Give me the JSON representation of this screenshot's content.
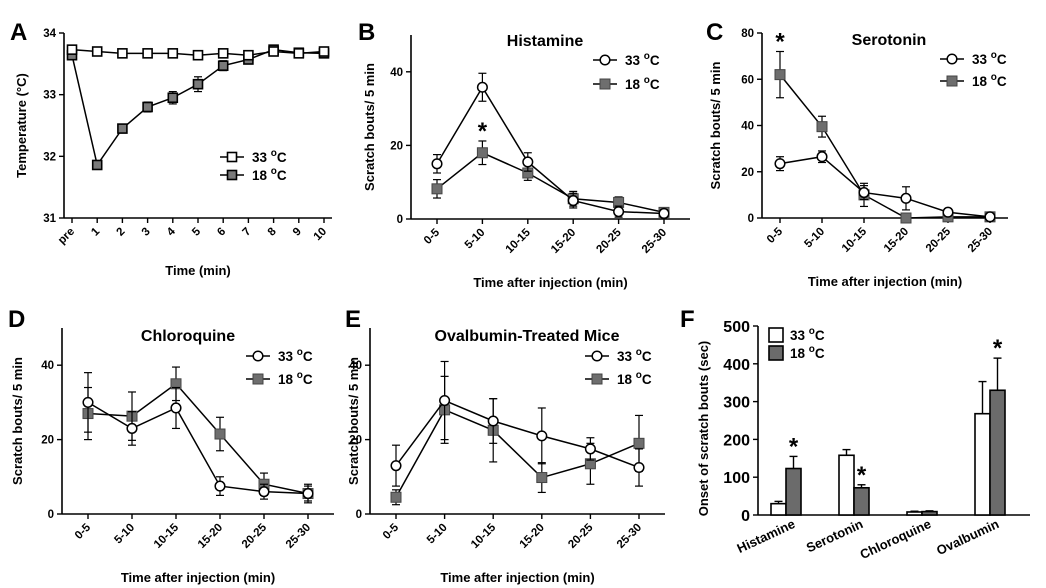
{
  "figure": {
    "panels": [
      "A",
      "B",
      "C",
      "D",
      "E",
      "F"
    ]
  },
  "chart_data": [
    {
      "panel": "A",
      "type": "line",
      "title": "",
      "xlabel": "Time (min)",
      "ylabel": "Temperature (°C)",
      "categories": [
        "pre",
        "1",
        "2",
        "3",
        "4",
        "5",
        "6",
        "7",
        "8",
        "9",
        "10"
      ],
      "ylim": [
        31,
        34
      ],
      "yticks": [
        31,
        32,
        33,
        34
      ],
      "legend": "center-right",
      "series": [
        {
          "name": "33 °C",
          "marker": "open",
          "values": [
            33.73,
            33.7,
            33.67,
            33.67,
            33.67,
            33.64,
            33.67,
            33.64,
            33.7,
            33.67,
            33.7
          ],
          "err": [
            0.03,
            0.02,
            0.02,
            0.02,
            0.02,
            0.03,
            0.02,
            0.03,
            0.03,
            0.03,
            0.03
          ]
        },
        {
          "name": "18 °C",
          "marker": "filled",
          "values": [
            33.64,
            31.86,
            32.45,
            32.8,
            32.95,
            33.17,
            33.47,
            33.57,
            33.73,
            33.68,
            33.67
          ],
          "err": [
            0.04,
            0.05,
            0.06,
            0.08,
            0.1,
            0.12,
            0.08,
            0.06,
            0.05,
            0.05,
            0.04
          ]
        }
      ],
      "annotations": []
    },
    {
      "panel": "B",
      "type": "line",
      "title": "Histamine",
      "xlabel": "Time after injection (min)",
      "ylabel": "Scratch bouts/ 5 min",
      "categories": [
        "0-5",
        "5-10",
        "10-15",
        "15-20",
        "20-25",
        "25-30"
      ],
      "ylim": [
        0,
        50
      ],
      "yticks": [
        0,
        20,
        40
      ],
      "legend": "top-right",
      "series": [
        {
          "name": "33 °C",
          "marker": "open",
          "values": [
            15,
            35.8,
            15.5,
            5,
            2,
            1.5
          ],
          "err": [
            2.5,
            3.8,
            2.5,
            2,
            1.5,
            1
          ]
        },
        {
          "name": "18 °C",
          "marker": "filled",
          "values": [
            8.2,
            18,
            12.5,
            5.5,
            4.5,
            1.8
          ],
          "err": [
            2.5,
            3.2,
            2,
            2,
            1.5,
            1
          ]
        }
      ],
      "annotations": [
        {
          "text": "*",
          "category": "5-10",
          "series": "18 °C"
        }
      ]
    },
    {
      "panel": "C",
      "type": "line",
      "title": "Serotonin",
      "xlabel": "Time after injection (min)",
      "ylabel": "Scratch bouts/ 5 min",
      "categories": [
        "0-5",
        "5-10",
        "10-15",
        "15-20",
        "20-25",
        "25-30"
      ],
      "ylim": [
        0,
        80
      ],
      "yticks": [
        0,
        20,
        40,
        60,
        80
      ],
      "legend": "top-right",
      "series": [
        {
          "name": "33 °C",
          "marker": "open",
          "values": [
            23.5,
            26.5,
            11,
            8.5,
            2.5,
            0.5
          ],
          "err": [
            3,
            2.5,
            3,
            5,
            1.5,
            1
          ]
        },
        {
          "name": "18 °C",
          "marker": "filled",
          "values": [
            62,
            39.5,
            10,
            0,
            0.5,
            0.5
          ],
          "err": [
            10,
            4.5,
            5,
            0.5,
            1,
            1
          ]
        }
      ],
      "annotations": [
        {
          "text": "*",
          "category": "0-5",
          "series": "18 °C"
        }
      ]
    },
    {
      "panel": "D",
      "type": "line",
      "title": "Chloroquine",
      "xlabel": "Time after injection (min)",
      "ylabel": "Scratch bouts/ 5 min",
      "categories": [
        "0-5",
        "5-10",
        "10-15",
        "15-20",
        "20-25",
        "25-30"
      ],
      "ylim": [
        0,
        50
      ],
      "yticks": [
        0,
        20,
        40
      ],
      "legend": "top-right",
      "series": [
        {
          "name": "33 °C",
          "marker": "open",
          "values": [
            30,
            23,
            28.5,
            7.5,
            6,
            5.5
          ],
          "err": [
            8,
            4.5,
            5.5,
            2.5,
            2,
            2
          ]
        },
        {
          "name": "18 °C",
          "marker": "filled",
          "values": [
            27,
            26.3,
            35,
            21.5,
            8,
            5.5
          ],
          "err": [
            7,
            6.5,
            4.5,
            4.5,
            3,
            2.5
          ]
        }
      ],
      "annotations": []
    },
    {
      "panel": "E",
      "type": "line",
      "title": "Ovalbumin-Treated Mice",
      "xlabel": "Time after injection (min)",
      "ylabel": "Scratch bouts/ 5 min",
      "categories": [
        "0-5",
        "5-10",
        "10-15",
        "15-20",
        "20-25",
        "25-30"
      ],
      "ylim": [
        0,
        50
      ],
      "yticks": [
        0,
        20,
        40
      ],
      "legend": "top-right",
      "series": [
        {
          "name": "33 °C",
          "marker": "open",
          "values": [
            13,
            30.5,
            25,
            21,
            17.5,
            12.5
          ],
          "err": [
            5.5,
            10.5,
            6,
            7.5,
            3,
            5
          ]
        },
        {
          "name": "18 °C",
          "marker": "filled",
          "values": [
            4.5,
            28,
            22.5,
            9.8,
            13.5,
            19
          ],
          "err": [
            2,
            9,
            8.5,
            4,
            5.5,
            7.5
          ]
        }
      ],
      "annotations": []
    },
    {
      "panel": "F",
      "type": "bar",
      "title": "",
      "xlabel": "",
      "ylabel": "Onset of scratch bouts (sec)",
      "categories": [
        "Histamine",
        "Serotonin",
        "Chloroquine",
        "Ovalbumin"
      ],
      "ylim": [
        0,
        500
      ],
      "yticks": [
        0,
        100,
        200,
        300,
        400,
        500
      ],
      "legend": "top-left",
      "series": [
        {
          "name": "33 °C",
          "fill": "white",
          "values": [
            30,
            158,
            8,
            268
          ],
          "err": [
            6,
            15,
            2,
            85
          ]
        },
        {
          "name": "18 °C",
          "fill": "#6b6b6b",
          "values": [
            123,
            72,
            9,
            330
          ],
          "err": [
            32,
            8,
            2,
            85
          ]
        }
      ],
      "annotations": [
        {
          "text": "*",
          "category": "Histamine",
          "series": "18 °C"
        },
        {
          "text": "*",
          "category": "Serotonin",
          "series": "18 °C"
        },
        {
          "text": "*",
          "category": "Ovalbumin",
          "series": "18 °C"
        }
      ]
    }
  ]
}
